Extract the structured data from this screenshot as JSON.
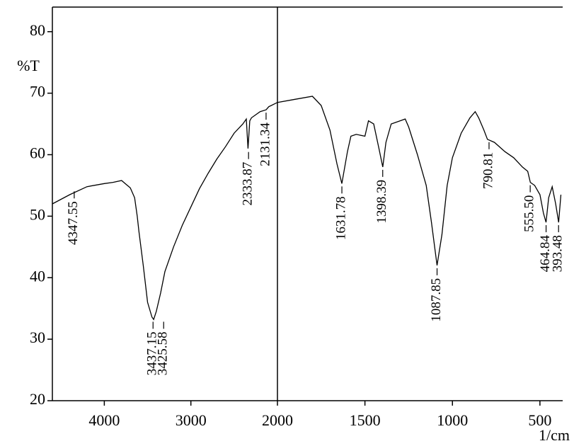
{
  "chart_data": {
    "type": "line",
    "ylabel": "%T",
    "xlabel": "1/cm",
    "xlim": [
      4600,
      370
    ],
    "xbreak": 2000,
    "xticks": [
      4000,
      3000,
      2000,
      1500,
      1000,
      500
    ],
    "ylim": [
      20,
      84
    ],
    "yticks": [
      20,
      30,
      40,
      50,
      60,
      70,
      80
    ],
    "color": "#000000",
    "x": [
      4600,
      4400,
      4200,
      4000,
      3900,
      3800,
      3750,
      3700,
      3650,
      3620,
      3600,
      3550,
      3500,
      3450,
      3430,
      3400,
      3350,
      3300,
      3200,
      3100,
      3000,
      2900,
      2800,
      2700,
      2600,
      2500,
      2400,
      2360,
      2340,
      2320,
      2300,
      2200,
      2131,
      2100,
      2000,
      1900,
      1800,
      1750,
      1700,
      1660,
      1632,
      1600,
      1580,
      1550,
      1500,
      1480,
      1450,
      1420,
      1398,
      1380,
      1350,
      1300,
      1270,
      1250,
      1200,
      1150,
      1120,
      1088,
      1060,
      1030,
      1000,
      950,
      900,
      870,
      850,
      820,
      800,
      760,
      700,
      650,
      600,
      570,
      555,
      530,
      500,
      480,
      465,
      450,
      430,
      410,
      393,
      380
    ],
    "values": [
      52,
      53.5,
      54.8,
      55.3,
      55.5,
      55.8,
      55.2,
      54.6,
      53,
      50,
      47.5,
      42,
      36,
      33.6,
      33.2,
      34.5,
      37.5,
      41,
      45,
      48.5,
      51.5,
      54.5,
      57,
      59.3,
      61.3,
      63.5,
      65,
      65.8,
      61,
      65.5,
      66,
      67,
      67.3,
      67.8,
      68.5,
      69,
      69.5,
      68,
      64,
      58.5,
      55.3,
      60.5,
      63,
      63.3,
      63,
      65.5,
      65,
      61,
      58,
      62,
      65,
      65.5,
      65.8,
      64.5,
      60,
      55,
      49,
      42,
      47,
      55,
      59.5,
      63.5,
      66,
      67,
      66,
      64,
      62.5,
      62,
      60.5,
      59.5,
      58,
      57.3,
      55.5,
      55,
      53.5,
      50.5,
      49,
      53,
      54.8,
      52,
      49,
      53.5
    ],
    "peaks": [
      {
        "x": 4347.55,
        "y": 54.5,
        "label": "4347.55"
      },
      {
        "x": 3437.15,
        "y": 33.3,
        "label": "3437.15"
      },
      {
        "x": 3425.58,
        "y": 33.3,
        "label": "3425.58"
      },
      {
        "x": 2333.87,
        "y": 60.9,
        "label": "2333.87"
      },
      {
        "x": 2131.34,
        "y": 67.3,
        "label": "2131.34"
      },
      {
        "x": 1631.78,
        "y": 55.3,
        "label": "1631.78"
      },
      {
        "x": 1398.39,
        "y": 58,
        "label": "1398.39"
      },
      {
        "x": 1087.85,
        "y": 42,
        "label": "1087.85"
      },
      {
        "x": 790.81,
        "y": 62.5,
        "label": "790.81"
      },
      {
        "x": 555.5,
        "y": 55.5,
        "label": "555.50"
      },
      {
        "x": 464.84,
        "y": 49,
        "label": "464.84"
      },
      {
        "x": 393.48,
        "y": 49,
        "label": "393.48"
      }
    ]
  }
}
